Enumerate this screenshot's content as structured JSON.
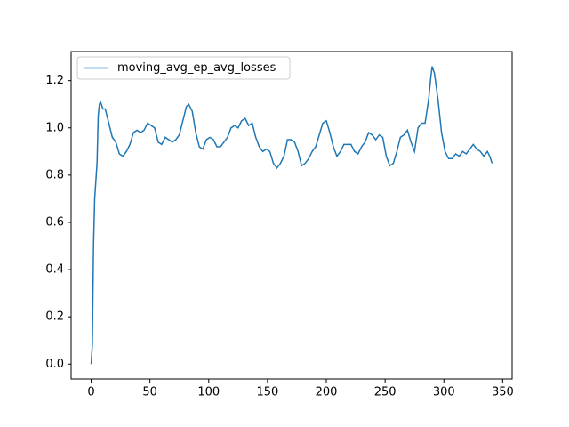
{
  "chart_data": {
    "type": "line",
    "series": [
      {
        "name": "moving_avg_ep_avg_losses",
        "color": "#1f77b4",
        "x": [
          0,
          1,
          2,
          3,
          5,
          6,
          7,
          8,
          10,
          12,
          15,
          18,
          21,
          24,
          27,
          30,
          33,
          36,
          39,
          42,
          45,
          48,
          51,
          54,
          57,
          60,
          63,
          66,
          69,
          72,
          75,
          78,
          81,
          83,
          86,
          89,
          92,
          95,
          98,
          101,
          104,
          107,
          110,
          113,
          116,
          119,
          122,
          125,
          128,
          131,
          134,
          137,
          140,
          143,
          146,
          149,
          152,
          155,
          158,
          161,
          164,
          167,
          170,
          173,
          176,
          179,
          182,
          185,
          188,
          191,
          194,
          197,
          200,
          203,
          206,
          209,
          212,
          215,
          218,
          221,
          224,
          227,
          230,
          233,
          236,
          239,
          242,
          245,
          248,
          251,
          254,
          257,
          260,
          263,
          266,
          269,
          272,
          275,
          278,
          281,
          284,
          287,
          289,
          290,
          292,
          295,
          298,
          301,
          304,
          307,
          310,
          313,
          316,
          319,
          322,
          325,
          328,
          331,
          334,
          337,
          339,
          341
        ],
        "values": [
          0.0,
          0.08,
          0.5,
          0.7,
          0.85,
          1.05,
          1.1,
          1.11,
          1.08,
          1.08,
          1.02,
          0.96,
          0.94,
          0.89,
          0.88,
          0.9,
          0.93,
          0.98,
          0.99,
          0.98,
          0.99,
          1.02,
          1.01,
          1.0,
          0.94,
          0.93,
          0.96,
          0.95,
          0.94,
          0.95,
          0.97,
          1.03,
          1.09,
          1.1,
          1.07,
          0.98,
          0.92,
          0.91,
          0.95,
          0.96,
          0.95,
          0.92,
          0.92,
          0.94,
          0.96,
          1.0,
          1.01,
          1.0,
          1.03,
          1.04,
          1.01,
          1.02,
          0.96,
          0.92,
          0.9,
          0.91,
          0.9,
          0.85,
          0.83,
          0.85,
          0.88,
          0.95,
          0.95,
          0.94,
          0.9,
          0.84,
          0.85,
          0.87,
          0.9,
          0.92,
          0.97,
          1.02,
          1.03,
          0.98,
          0.92,
          0.88,
          0.9,
          0.93,
          0.93,
          0.93,
          0.9,
          0.89,
          0.92,
          0.94,
          0.98,
          0.97,
          0.95,
          0.97,
          0.96,
          0.88,
          0.84,
          0.85,
          0.9,
          0.96,
          0.97,
          0.99,
          0.94,
          0.9,
          1.0,
          1.02,
          1.02,
          1.12,
          1.22,
          1.26,
          1.23,
          1.12,
          0.98,
          0.9,
          0.87,
          0.87,
          0.89,
          0.88,
          0.9,
          0.89,
          0.91,
          0.93,
          0.91,
          0.9,
          0.88,
          0.9,
          0.88,
          0.85
        ]
      }
    ],
    "xlim": [
      -17.05,
      358.05
    ],
    "xticks": [
      0,
      50,
      100,
      150,
      200,
      250,
      300,
      350
    ],
    "ylim": [
      -0.063,
      1.323
    ],
    "yticks": [
      {
        "value": 0,
        "label": "0.0"
      },
      0.2,
      0.4,
      0.6,
      0.8,
      {
        "value": 1,
        "label": "1.0"
      },
      1.2
    ],
    "legend": "upper left"
  }
}
